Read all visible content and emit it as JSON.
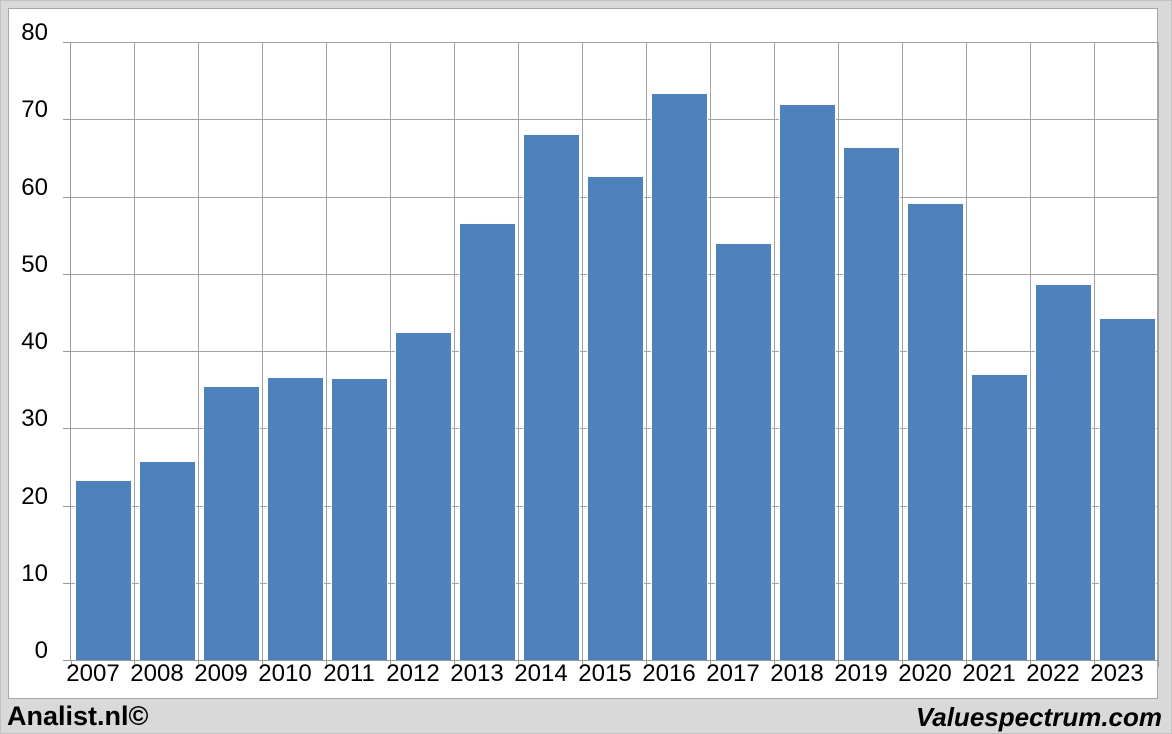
{
  "footer": {
    "left_text": "Analist.nl©",
    "right_text": "Valuespectrum.com"
  },
  "chart_data": {
    "type": "bar",
    "title": "",
    "xlabel": "",
    "ylabel": "",
    "categories": [
      "2007",
      "2008",
      "2009",
      "2010",
      "2011",
      "2012",
      "2013",
      "2014",
      "2015",
      "2016",
      "2017",
      "2018",
      "2019",
      "2020",
      "2021",
      "2022",
      "2023"
    ],
    "values": [
      23.3,
      25.7,
      35.5,
      36.7,
      36.5,
      42.5,
      56.6,
      68.1,
      62.7,
      73.4,
      54.0,
      72.0,
      66.4,
      59.1,
      37.0,
      48.7,
      44.3
    ],
    "ylim": [
      0,
      80
    ],
    "yticks": [
      0,
      10,
      20,
      30,
      40,
      50,
      60,
      70,
      80
    ],
    "grid": "both",
    "legend": "none",
    "colors": {
      "bar_fill": "#4f81bd",
      "bar_border": "#fbfcfe",
      "gridline": "#a3a3a3",
      "axis_line": "#9a9a9a",
      "panel_bg": "#ffffff",
      "panel_border": "#a6a6a6",
      "outer_bg": "#d9d9d9",
      "label_text": "#000000"
    }
  }
}
